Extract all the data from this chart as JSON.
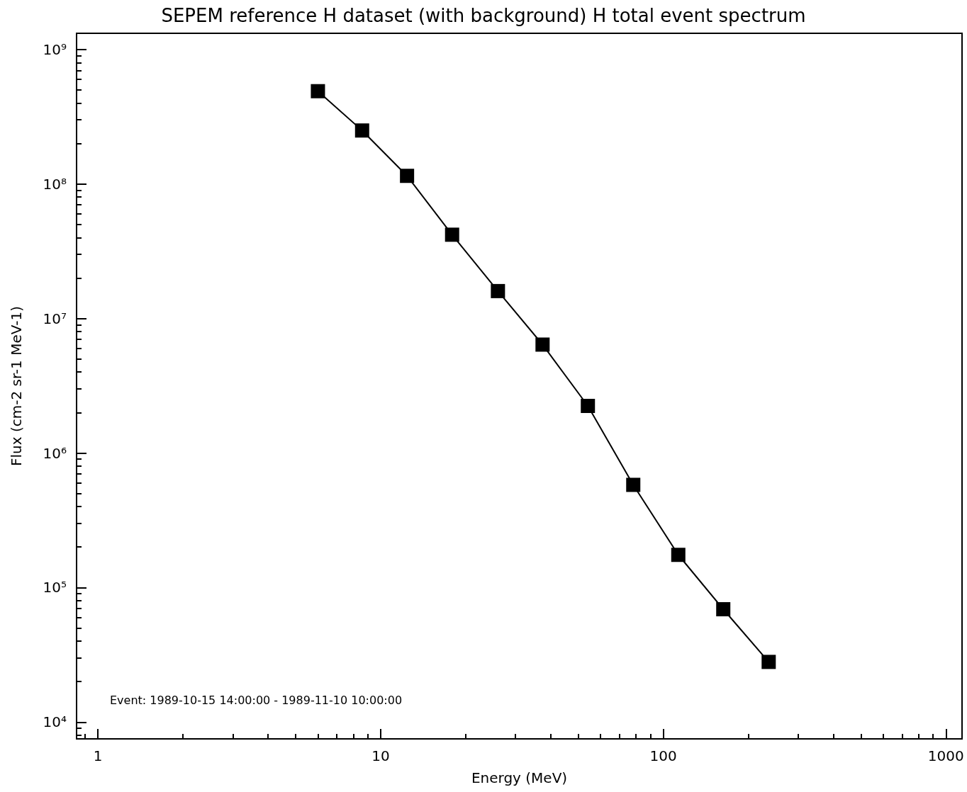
{
  "chart_data": {
    "type": "line",
    "title": "SEPEM reference H dataset (with background) H total event spectrum",
    "xlabel": "Energy (MeV)",
    "ylabel": "Flux (cm-2 sr-1 MeV-1)",
    "annotations": [
      "Event: 1989-10-15 14:00:00 - 1989-11-10 10:00:00"
    ],
    "x": [
      6.0,
      8.6,
      12.4,
      17.9,
      26.0,
      37.4,
      54.1,
      78.3,
      113,
      163,
      236
    ],
    "series": [
      {
        "color": "#000000",
        "values": [
          490000000.0,
          250000000.0,
          115000000.0,
          42000000.0,
          16000000.0,
          6400000.0,
          2240000.0,
          580000.0,
          175000.0,
          69000.0,
          28000.0
        ]
      }
    ],
    "log": "xy",
    "marker": "square",
    "line_style": "solid",
    "grid": false,
    "xlim": [
      0.84,
      1140
    ],
    "ylim": [
      7500,
      1320000000.0
    ],
    "xticks": [
      1,
      10,
      100,
      1000
    ],
    "yticks": [
      {
        "value": 10000,
        "label": "10⁴"
      },
      {
        "value": 100000,
        "label": "10⁵"
      },
      {
        "value": 1000000,
        "label": "10⁶"
      },
      {
        "value": 10000000,
        "label": "10⁷"
      },
      {
        "value": 100000000,
        "label": "10⁸"
      },
      {
        "value": 1000000000,
        "label": "10⁹"
      }
    ]
  }
}
